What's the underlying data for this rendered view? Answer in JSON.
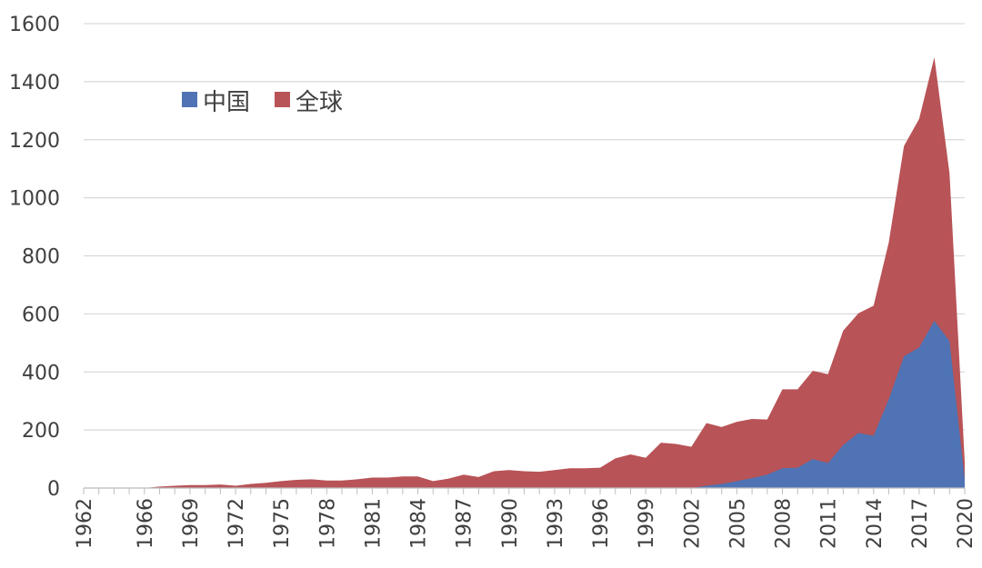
{
  "chart_data": {
    "type": "area",
    "title": "",
    "xlabel": "",
    "ylabel": "",
    "ylim": [
      0,
      1600
    ],
    "yticks": [
      0,
      200,
      400,
      600,
      800,
      1000,
      1200,
      1400,
      1600
    ],
    "xlim": [
      1962,
      2020
    ],
    "xticks": [
      1962,
      1966,
      1969,
      1972,
      1975,
      1978,
      1981,
      1984,
      1987,
      1990,
      1993,
      1996,
      1999,
      2002,
      2005,
      2008,
      2011,
      2014,
      2017,
      2020
    ],
    "grid": true,
    "legend_position": "top-left",
    "stacking": "overlapping",
    "series": [
      {
        "name": "全球",
        "color": "#b85357",
        "points": [
          [
            1962,
            0
          ],
          [
            1963,
            0
          ],
          [
            1964,
            0
          ],
          [
            1965,
            0
          ],
          [
            1966,
            0
          ],
          [
            1967,
            5
          ],
          [
            1968,
            8
          ],
          [
            1969,
            10
          ],
          [
            1970,
            10
          ],
          [
            1971,
            12
          ],
          [
            1972,
            8
          ],
          [
            1973,
            14
          ],
          [
            1974,
            18
          ],
          [
            1975,
            24
          ],
          [
            1976,
            28
          ],
          [
            1977,
            30
          ],
          [
            1978,
            26
          ],
          [
            1979,
            26
          ],
          [
            1980,
            30
          ],
          [
            1981,
            36
          ],
          [
            1982,
            36
          ],
          [
            1983,
            40
          ],
          [
            1984,
            40
          ],
          [
            1985,
            24
          ],
          [
            1986,
            32
          ],
          [
            1987,
            46
          ],
          [
            1988,
            38
          ],
          [
            1989,
            58
          ],
          [
            1990,
            62
          ],
          [
            1991,
            58
          ],
          [
            1992,
            56
          ],
          [
            1993,
            62
          ],
          [
            1994,
            68
          ],
          [
            1995,
            68
          ],
          [
            1996,
            70
          ],
          [
            1997,
            102
          ],
          [
            1998,
            116
          ],
          [
            1999,
            104
          ],
          [
            2000,
            156
          ],
          [
            2001,
            152
          ],
          [
            2002,
            142
          ],
          [
            2003,
            224
          ],
          [
            2004,
            210
          ],
          [
            2005,
            228
          ],
          [
            2006,
            238
          ],
          [
            2007,
            236
          ],
          [
            2008,
            340
          ],
          [
            2009,
            340
          ],
          [
            2010,
            404
          ],
          [
            2011,
            392
          ],
          [
            2012,
            542
          ],
          [
            2013,
            602
          ],
          [
            2014,
            628
          ],
          [
            2015,
            846
          ],
          [
            2016,
            1178
          ],
          [
            2017,
            1272
          ],
          [
            2018,
            1484
          ],
          [
            2019,
            1084
          ],
          [
            2020,
            90
          ]
        ]
      },
      {
        "name": "中国",
        "color": "#4f73b4",
        "points": [
          [
            1962,
            0
          ],
          [
            2002,
            0
          ],
          [
            2003,
            8
          ],
          [
            2004,
            14
          ],
          [
            2005,
            24
          ],
          [
            2006,
            34
          ],
          [
            2007,
            46
          ],
          [
            2008,
            68
          ],
          [
            2009,
            70
          ],
          [
            2010,
            100
          ],
          [
            2011,
            86
          ],
          [
            2012,
            148
          ],
          [
            2013,
            190
          ],
          [
            2014,
            180
          ],
          [
            2015,
            306
          ],
          [
            2016,
            454
          ],
          [
            2017,
            484
          ],
          [
            2018,
            576
          ],
          [
            2019,
            506
          ],
          [
            2020,
            30
          ]
        ]
      }
    ]
  }
}
